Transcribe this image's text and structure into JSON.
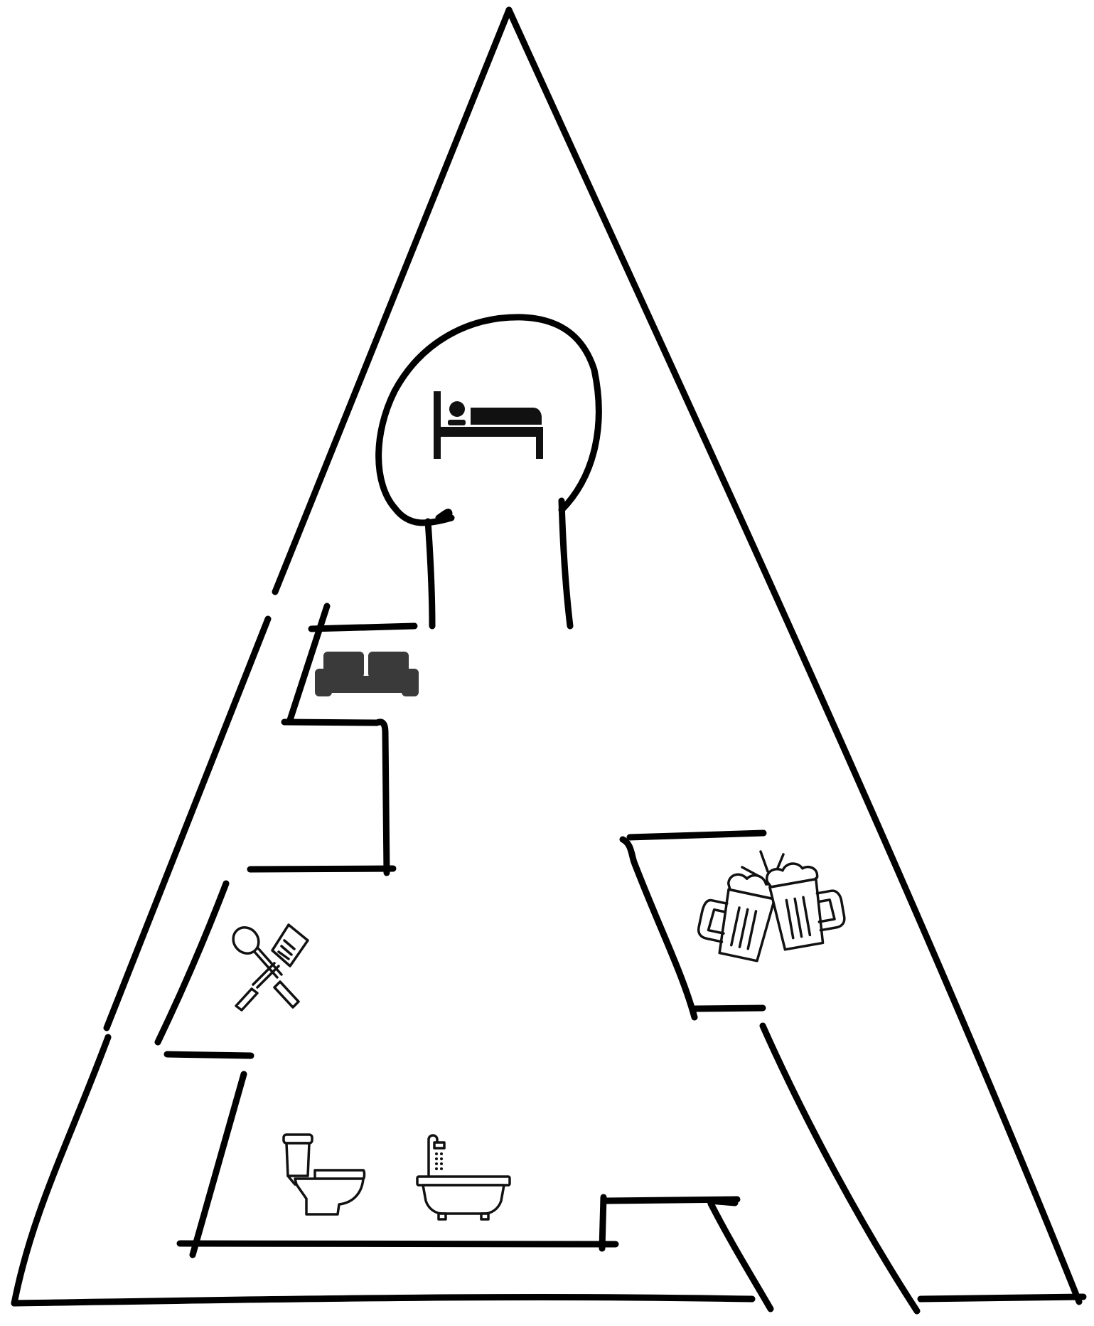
{
  "plan": {
    "background": "#ffffff",
    "wall_color": "#000000",
    "rooms": [
      {
        "id": "bedroom",
        "icon": "bed-icon"
      },
      {
        "id": "living-room",
        "icon": "sofa-icon"
      },
      {
        "id": "kitchen",
        "icon": "kitchen-utensils-icon"
      },
      {
        "id": "bar",
        "icon": "beer-mugs-icon"
      },
      {
        "id": "bathroom",
        "icons": [
          "toilet-icon",
          "bathtub-icon"
        ]
      }
    ]
  }
}
